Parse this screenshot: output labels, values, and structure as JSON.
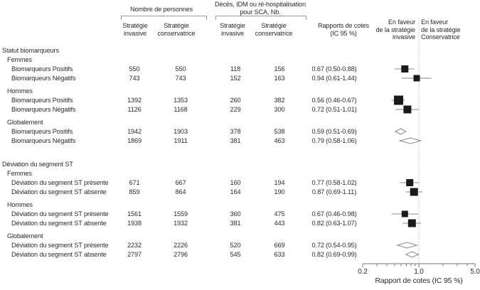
{
  "header": {
    "n_people_group": "Nombre de personnes",
    "events_group_line1": "Décès, IDM ou ré-hospitalisation",
    "events_group_line2": "pour SCA, Nb.",
    "strategy_line1": "Stratégie",
    "invasive_line2": "invasive",
    "conservative_line2": "conservatrice",
    "or_header_line1": "Rapports de cotes",
    "or_header_line2": "(IC 95 %)",
    "favor_invasive_line1": "En faveur",
    "favor_invasive_line2": "de la stratégie",
    "favor_invasive_line3": "invasive",
    "favor_conservative_line1": "En faveur",
    "favor_conservative_line2": "de la stratégie",
    "favor_conservative_line3": "Conservatrice"
  },
  "colors": {
    "text": "#2b2b2b",
    "marker": "#1a1a1a",
    "ci_line": "#8a8a8a",
    "diamond_fill": "#ffffff",
    "diamond_stroke": "#8a8a8a",
    "axis": "#7a7a7a",
    "ref_line": "#ababab",
    "bracket": "#9a9a9a"
  },
  "chart_data": {
    "type": "forest",
    "axis": {
      "scale": "log",
      "min": 0.2,
      "max": 5.0,
      "ref": 1.0,
      "major_ticks": [
        0.2,
        1.0,
        5.0
      ],
      "major_labels": [
        "0.2",
        "1.0",
        "5.0"
      ],
      "minor_ticks": [
        0.3,
        0.4,
        0.5,
        0.6,
        0.7,
        0.8,
        0.9,
        2,
        3,
        4
      ],
      "title": "Rapport de cotes (IC 95 %)"
    },
    "sections": [
      {
        "title": "Statut biomarqueurs",
        "groups": [
          {
            "name": "Femmes",
            "rows": [
              {
                "label": "Biomarqueurs Positifs",
                "n_inv": "550",
                "n_cons": "550",
                "e_inv": "118",
                "e_cons": "156",
                "or_text": "0.67 (0.50-0.88)",
                "or": 0.67,
                "lo": 0.5,
                "hi": 0.88,
                "marker": "square",
                "size": 10
              },
              {
                "label": "Biomarqueurs Négatifs",
                "n_inv": "743",
                "n_cons": "743",
                "e_inv": "152",
                "e_cons": "163",
                "or_text": "0.94 (0.61-1.44)",
                "or": 0.94,
                "lo": 0.61,
                "hi": 1.44,
                "marker": "square",
                "size": 9
              }
            ]
          },
          {
            "name": "Hommes",
            "rows": [
              {
                "label": "Biomarqueurs Positifs",
                "n_inv": "1392",
                "n_cons": "1353",
                "e_inv": "260",
                "e_cons": "382",
                "or_text": "0.56 (0.46-0.67)",
                "or": 0.56,
                "lo": 0.46,
                "hi": 0.67,
                "marker": "square",
                "size": 13
              },
              {
                "label": "Biomarqueurs Négatifs",
                "n_inv": "1126",
                "n_cons": "1168",
                "e_inv": "229",
                "e_cons": "300",
                "or_text": "0.72 (0.51-1.01)",
                "or": 0.72,
                "lo": 0.51,
                "hi": 1.01,
                "marker": "square",
                "size": 11
              }
            ]
          },
          {
            "name": "Globalement",
            "rows": [
              {
                "label": "Biomarqueurs Positifs",
                "n_inv": "1942",
                "n_cons": "1903",
                "e_inv": "378",
                "e_cons": "538",
                "or_text": "0.59 (0.51-0.69)",
                "or": 0.59,
                "lo": 0.51,
                "hi": 0.69,
                "marker": "diamond"
              },
              {
                "label": "Biomarqueurs Négatifs",
                "n_inv": "1869",
                "n_cons": "1911",
                "e_inv": "381",
                "e_cons": "463",
                "or_text": "0.79 (0.58-1.06)",
                "or": 0.79,
                "lo": 0.58,
                "hi": 1.06,
                "marker": "diamond"
              }
            ]
          }
        ]
      },
      {
        "title": "Déviation du segment ST",
        "groups": [
          {
            "name": "Femmes",
            "rows": [
              {
                "label": "Déviation du segment ST présente",
                "n_inv": "671",
                "n_cons": "667",
                "e_inv": "160",
                "e_cons": "194",
                "or_text": "0.77 (0.58-1.02)",
                "or": 0.77,
                "lo": 0.58,
                "hi": 1.02,
                "marker": "square",
                "size": 10
              },
              {
                "label": "Déviation du segment ST absente",
                "n_inv": "859",
                "n_cons": "864",
                "e_inv": "164",
                "e_cons": "190",
                "or_text": "0.87 (0.69-1.11)",
                "or": 0.87,
                "lo": 0.69,
                "hi": 1.11,
                "marker": "square",
                "size": 11
              }
            ]
          },
          {
            "name": "Hommes",
            "rows": [
              {
                "label": "Déviation du segment ST présente",
                "n_inv": "1561",
                "n_cons": "1559",
                "e_inv": "360",
                "e_cons": "475",
                "or_text": "0.67 (0.46-0.98)",
                "or": 0.67,
                "lo": 0.46,
                "hi": 0.98,
                "marker": "square",
                "size": 9
              },
              {
                "label": "Déviation du segment ST absente",
                "n_inv": "1938",
                "n_cons": "1932",
                "e_inv": "381",
                "e_cons": "443",
                "or_text": "0.82 (0.63-1.07)",
                "or": 0.82,
                "lo": 0.63,
                "hi": 1.07,
                "marker": "square",
                "size": 11
              }
            ]
          },
          {
            "name": "Globalement",
            "rows": [
              {
                "label": "Déviation du segment ST présente",
                "n_inv": "2232",
                "n_cons": "2226",
                "e_inv": "520",
                "e_cons": "669",
                "or_text": "0.72 (0.54-0.95)",
                "or": 0.72,
                "lo": 0.54,
                "hi": 0.95,
                "marker": "diamond"
              },
              {
                "label": "Déviation du segment ST absente",
                "n_inv": "2797",
                "n_cons": "2796",
                "e_inv": "545",
                "e_cons": "633",
                "or_text": "0.82 (0.69-0.99)",
                "or": 0.82,
                "lo": 0.69,
                "hi": 0.99,
                "marker": "diamond"
              }
            ]
          }
        ]
      }
    ]
  }
}
